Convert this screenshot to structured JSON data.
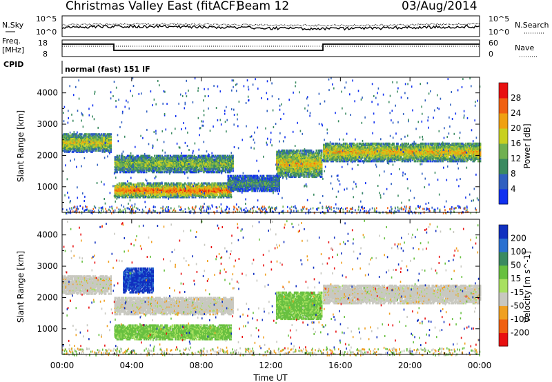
{
  "header": {
    "station": "Christmas Valley East (fitACF)",
    "beam": "Beam 12",
    "date": "03/Aug/2014"
  },
  "noise_panel": {
    "left_label": "N.Sky",
    "left_ticks": [
      "10^5",
      "10^0"
    ],
    "right_label": "N.Search",
    "right_ticks": [
      "10^5",
      "10^0"
    ]
  },
  "freq_panel": {
    "left_label_line1": "Freq.",
    "left_label_line2": "[MHz]",
    "left_ticks": [
      "18",
      "8"
    ],
    "right_label": "Nave",
    "right_ticks": [
      "60",
      "0"
    ],
    "cpid_label": "CPID",
    "mode_text": "normal (fast) 151 IF"
  },
  "x_axis": {
    "label": "Time UT",
    "ticks": [
      "00:00",
      "04:00",
      "08:00",
      "12:00",
      "16:00",
      "20:00",
      "00:00"
    ]
  },
  "chart_data": [
    {
      "type": "heatmap",
      "name": "power",
      "ylabel": "Slant Range [km]",
      "yticks": [
        1000,
        2000,
        3000,
        4000
      ],
      "ylim": [
        180,
        4500
      ],
      "xlim_hours": [
        0,
        24
      ],
      "colorbar_label": "Power [dB]",
      "colorbar_ticks": [
        "4",
        "8",
        "12",
        "16",
        "20",
        "24",
        "28"
      ],
      "colorbar_colors": [
        "#1030f0",
        "#3060c0",
        "#3a8a60",
        "#70b050",
        "#c8d020",
        "#f0a010",
        "#f06010",
        "#e81010"
      ],
      "bands": [
        {
          "t": [
            0.0,
            2.8
          ],
          "range": [
            2150,
            2750
          ],
          "level": 0.55
        },
        {
          "t": [
            3.0,
            9.8
          ],
          "range": [
            1500,
            2050
          ],
          "level": 0.45
        },
        {
          "t": [
            3.0,
            9.7
          ],
          "range": [
            700,
            1150
          ],
          "level": 0.75
        },
        {
          "t": [
            12.3,
            14.9
          ],
          "range": [
            1350,
            2200
          ],
          "level": 0.6
        },
        {
          "t": [
            15.0,
            24.0
          ],
          "range": [
            1850,
            2450
          ],
          "level": 0.6
        },
        {
          "t": [
            9.5,
            12.5
          ],
          "range": [
            900,
            1400
          ],
          "level": 0.3
        }
      ]
    },
    {
      "type": "heatmap",
      "name": "velocity",
      "ylabel": "Slant Range [km]",
      "yticks": [
        1000,
        2000,
        3000,
        4000
      ],
      "ylim": [
        180,
        4500
      ],
      "xlim_hours": [
        0,
        24
      ],
      "colorbar_label": "Velocity [m s^-1]",
      "colorbar_ticks": [
        "200",
        "100",
        "50",
        "15",
        "-15",
        "-50",
        "-100",
        "-200"
      ],
      "colorbar_colors": [
        "#1030c0",
        "#2a70d0",
        "#3a8a60",
        "#68c040",
        "#a8e060",
        "#c8c8c0",
        "#f0a020",
        "#f06010",
        "#e81010"
      ],
      "bands": [
        {
          "t": [
            0.0,
            2.8
          ],
          "range": [
            2150,
            2750
          ],
          "vel": "ground"
        },
        {
          "t": [
            3.0,
            9.8
          ],
          "range": [
            1500,
            2050
          ],
          "vel": "ground"
        },
        {
          "t": [
            3.0,
            9.7
          ],
          "range": [
            700,
            1150
          ],
          "vel": 30
        },
        {
          "t": [
            3.5,
            5.2
          ],
          "range": [
            2200,
            3000
          ],
          "vel": 200
        },
        {
          "t": [
            12.3,
            14.9
          ],
          "range": [
            1350,
            2200
          ],
          "vel": 30
        },
        {
          "t": [
            15.0,
            24.0
          ],
          "range": [
            1850,
            2450
          ],
          "vel": "ground"
        }
      ]
    }
  ]
}
